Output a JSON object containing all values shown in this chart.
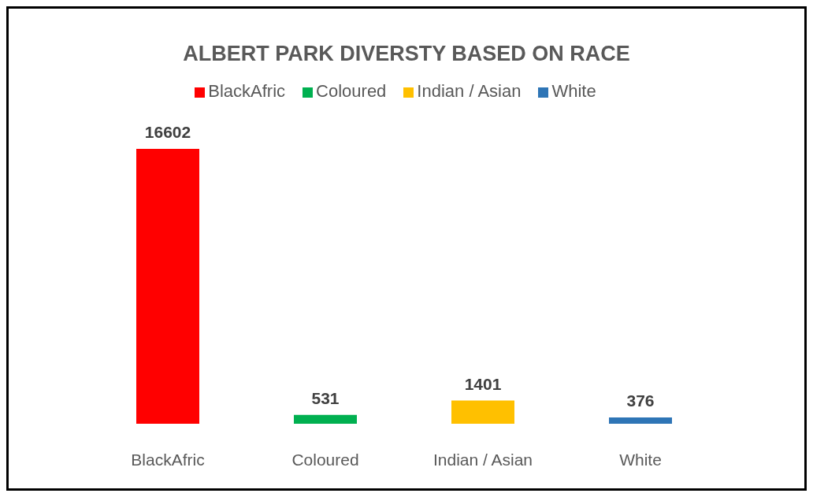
{
  "chart_data": {
    "type": "bar",
    "title": "ALBERT PARK DIVERSTY BASED ON RACE",
    "categories": [
      "BlackAfric",
      "Coloured",
      "Indian / Asian",
      "White"
    ],
    "stacked": true,
    "series": [
      {
        "name": "BlackAfric",
        "color": "#ff0000",
        "values": [
          16602,
          null,
          null,
          null
        ]
      },
      {
        "name": "Coloured",
        "color": "#00b050",
        "values": [
          null,
          531,
          null,
          null
        ]
      },
      {
        "name": "Indian / Asian",
        "color": "#ffc000",
        "values": [
          null,
          null,
          1401,
          null
        ]
      },
      {
        "name": "White",
        "color": "#2e75b6",
        "values": [
          null,
          null,
          null,
          376
        ]
      }
    ],
    "data_labels": true,
    "legend": "top"
  }
}
